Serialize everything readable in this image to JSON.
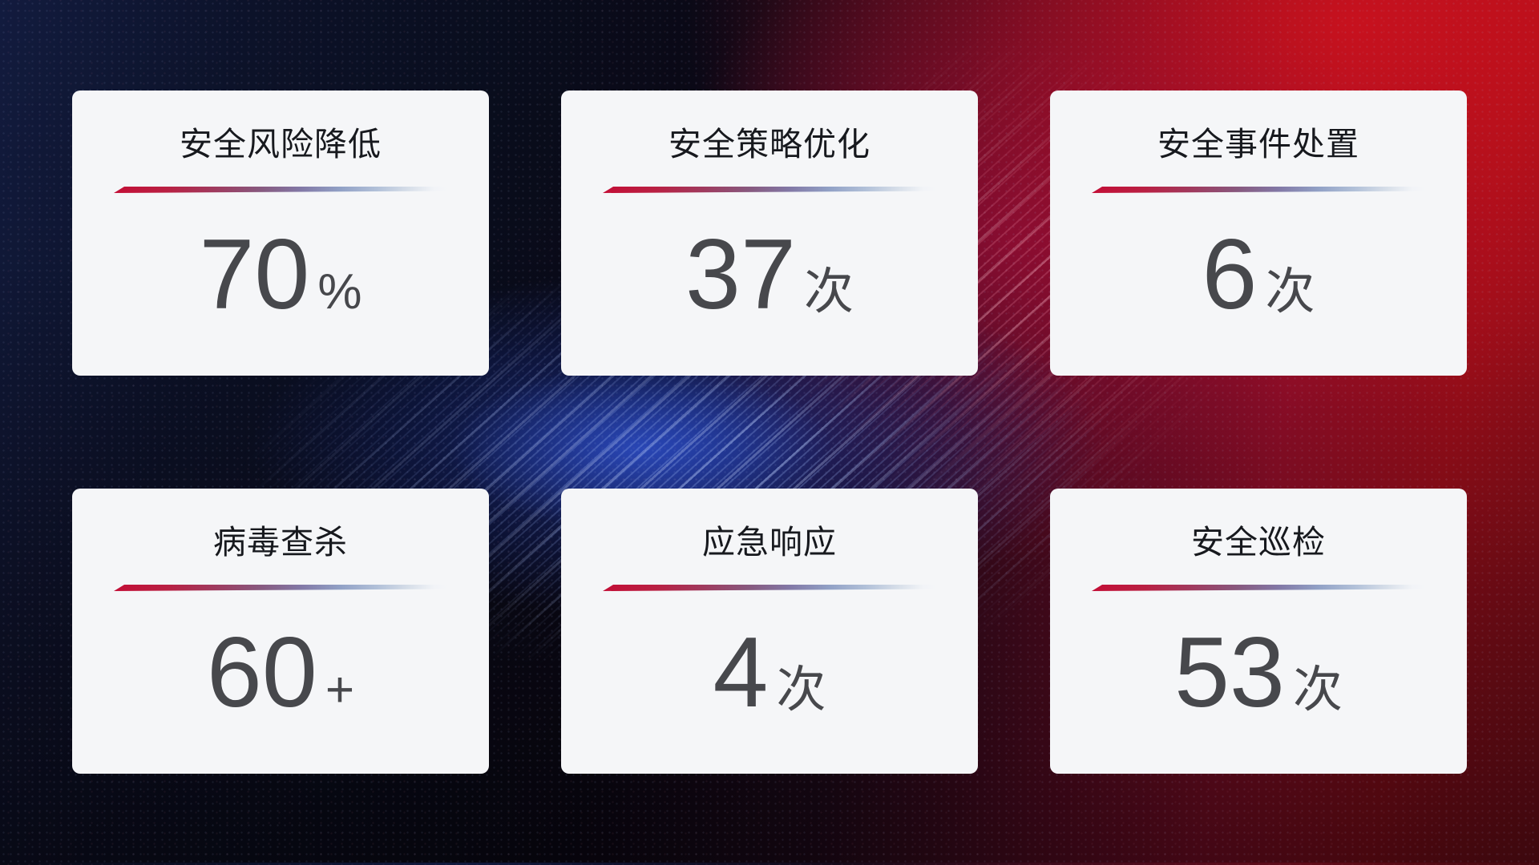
{
  "cards": [
    {
      "title": "安全风险降低",
      "value": "70",
      "unit": "%"
    },
    {
      "title": "安全策略优化",
      "value": "37",
      "unit": "次"
    },
    {
      "title": "安全事件处置",
      "value": "6",
      "unit": "次"
    },
    {
      "title": "病毒查杀",
      "value": "60",
      "unit": "+"
    },
    {
      "title": "应急响应",
      "value": "4",
      "unit": "次"
    },
    {
      "title": "安全巡检",
      "value": "53",
      "unit": "次"
    }
  ],
  "colors": {
    "card_bg": "#f5f6f8",
    "title_color": "#17191e",
    "number_color": "#47484c",
    "divider_red": "#c30e36",
    "divider_blue": "#b2c1d9",
    "bg_navy": "#121b3e",
    "bg_red": "#b20f1c",
    "glow_blue": "#1c308c"
  }
}
